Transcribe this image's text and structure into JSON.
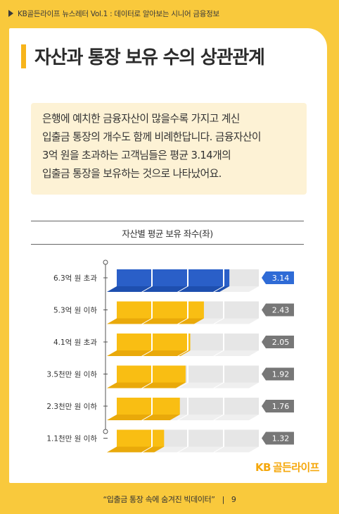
{
  "header": {
    "text": "KB골든라이프 뉴스레터 Vol.1 : 데이터로 알아보는 시니어 금융정보"
  },
  "title": "자산과 통장 보유 수의 상관관계",
  "note": {
    "lines": [
      "은행에 예치한 금융자산이 많을수록 가지고 계신",
      "입출금 통장의 개수도 함께 비례한답니다. 금융자산이",
      "3억 원을 초과하는 고객님들은 평균 3.14개의",
      "입출금 통장을 보유하는 것으로 나타났어요."
    ]
  },
  "chart_data": {
    "type": "bar",
    "orientation": "horizontal",
    "title": "자산별 평균 보유 좌수(좌)",
    "categories": [
      "6.3억 원 초과",
      "5.3억 원 이하",
      "4.1억 원 초과",
      "3.5천만 원 이하",
      "2.3천만 원 이하",
      "1.1천만 원 이하"
    ],
    "values": [
      3.14,
      2.43,
      2.05,
      1.92,
      1.76,
      1.32
    ],
    "labels": [
      "3.14",
      "2.43",
      "2.05",
      "1.92",
      "1.76",
      "1.32"
    ],
    "xlim": [
      0,
      4
    ],
    "colors": {
      "highlight": "#2A5FC8",
      "bar": "#F9BE13",
      "track": "#E6E6E6",
      "label_highlight": "#2F6BD6",
      "label": "#777777"
    },
    "highlight_index": 0
  },
  "brand": {
    "kb": "KB",
    "name": "골든라이프"
  },
  "footer": {
    "title": "“입출금 통장 속에 숨겨진 빅데이터”",
    "page": "9"
  }
}
